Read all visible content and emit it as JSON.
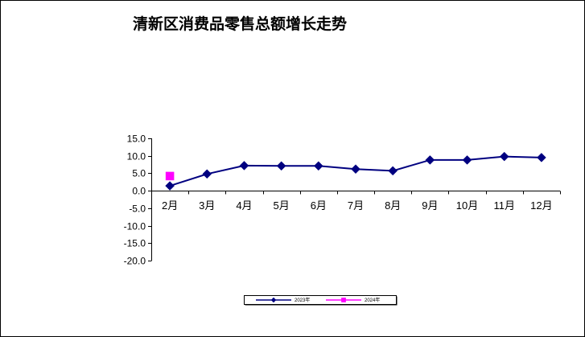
{
  "chart_data": {
    "type": "line",
    "title": "清新区消费品零售总额增长走势",
    "categories": [
      "2月",
      "3月",
      "4月",
      "5月",
      "6月",
      "7月",
      "8月",
      "9月",
      "10月",
      "11月",
      "12月"
    ],
    "y_tick_labels": [
      "15.0",
      "10.0",
      "5.0",
      "0.0",
      "-5.0",
      "-10.0",
      "-15.0",
      "-20.0"
    ],
    "ylim": [
      -20,
      15
    ],
    "grid": false,
    "legend": "bottom",
    "series": [
      {
        "name": "2023年",
        "color": "#000080",
        "marker": "diamond",
        "values": [
          1.4,
          4.8,
          7.2,
          7.1,
          7.1,
          6.2,
          5.7,
          8.8,
          8.8,
          9.8,
          9.5
        ]
      },
      {
        "name": "2024年",
        "color": "#FF00FF",
        "marker": "square",
        "values": [
          4.2,
          null,
          null,
          null,
          null,
          null,
          null,
          null,
          null,
          null,
          null
        ]
      }
    ]
  }
}
